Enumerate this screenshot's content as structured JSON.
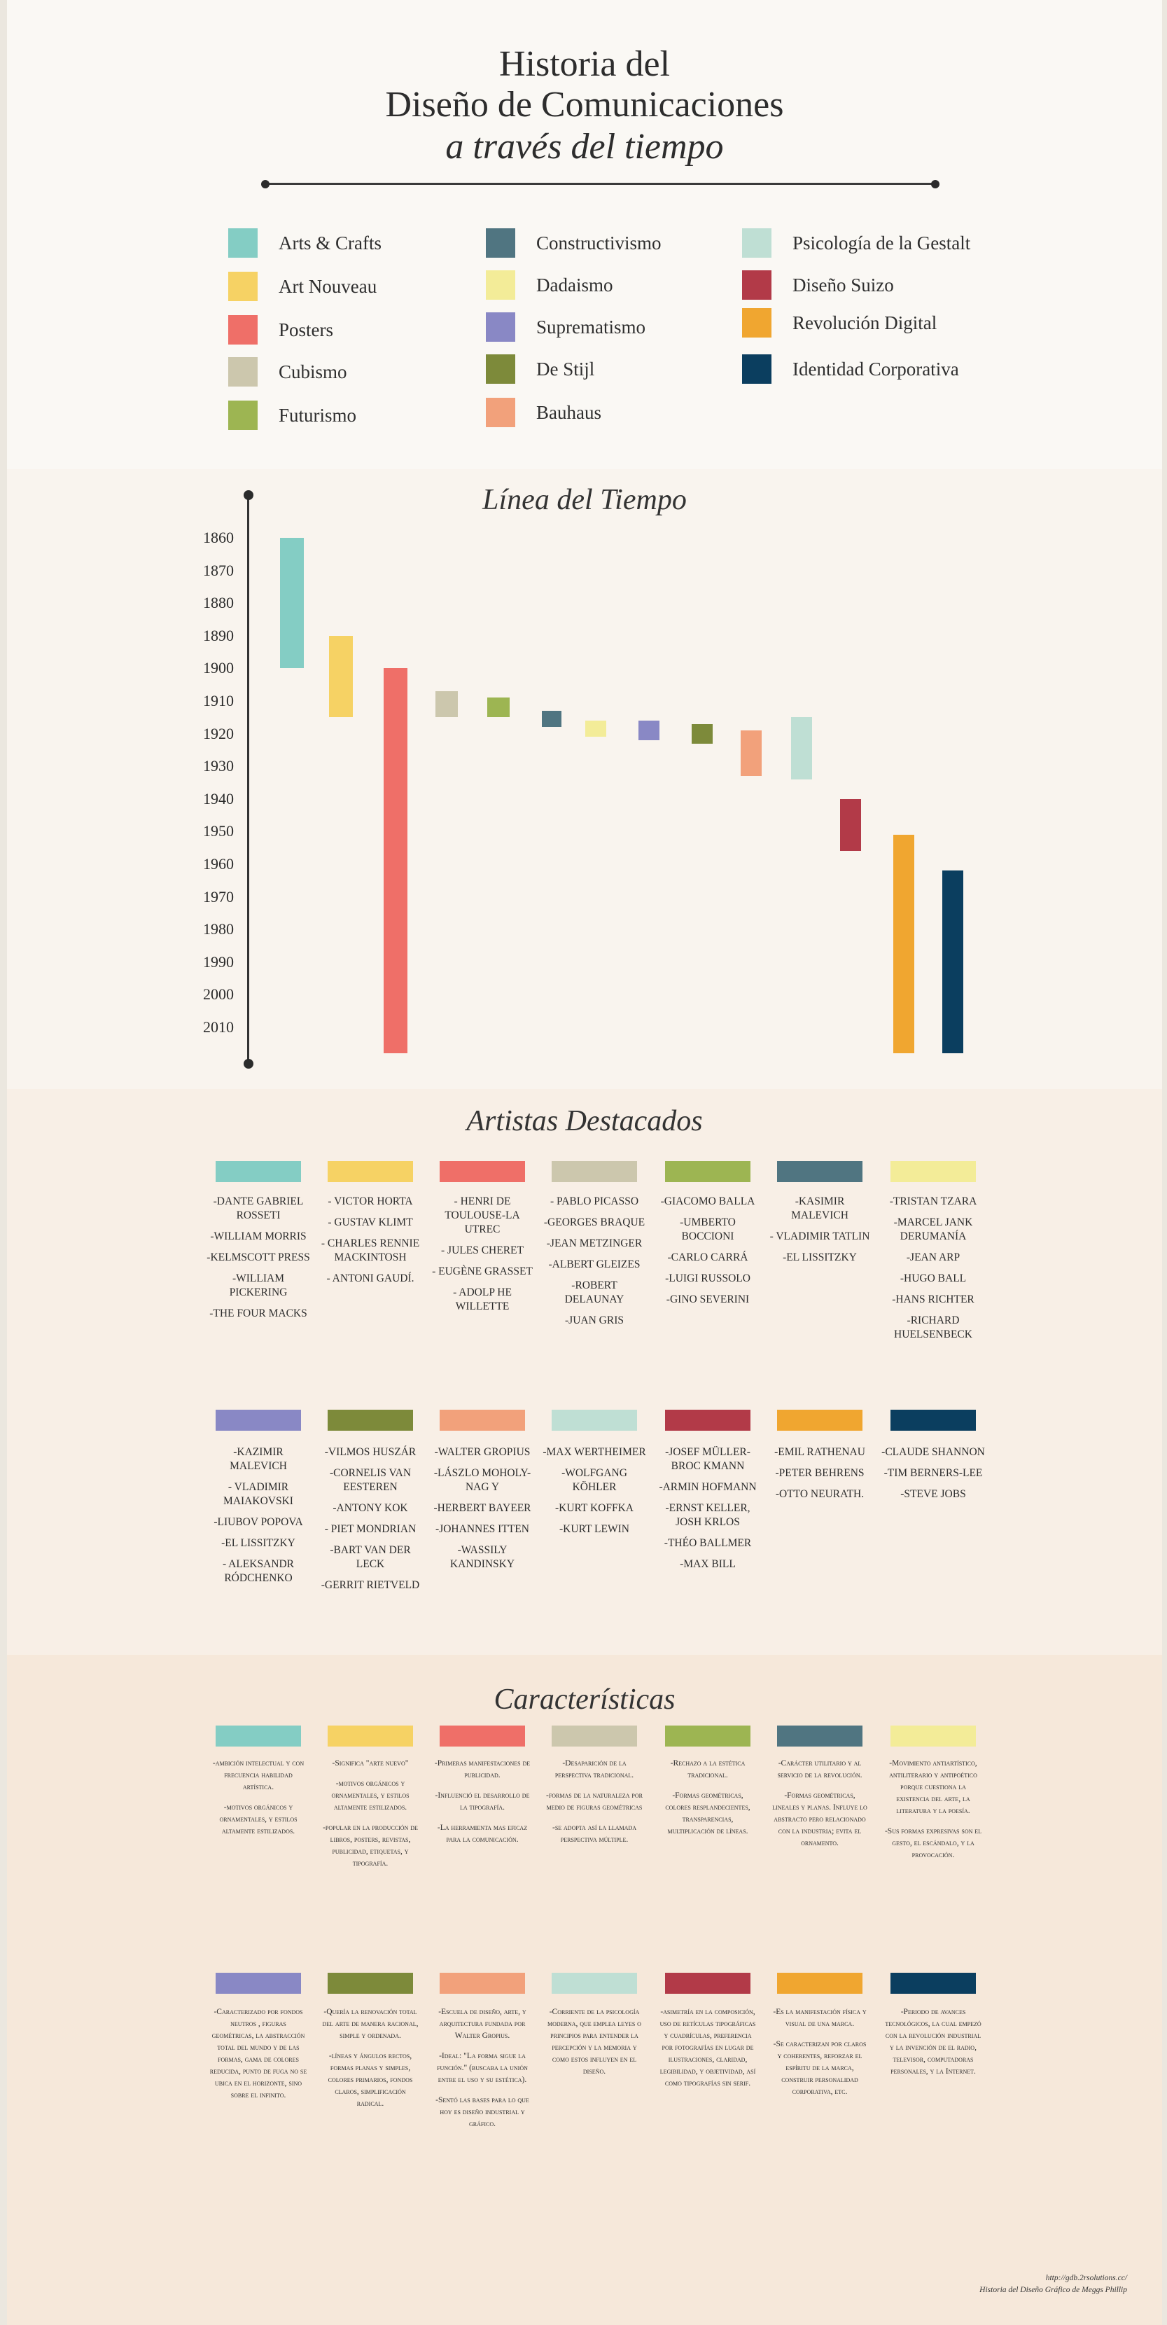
{
  "header": {
    "title_line1": "Historia del",
    "title_line2": "Diseño de Comunicaciones",
    "title_line3": "a través del tiempo"
  },
  "legend": [
    {
      "label": "Arts & Crafts",
      "color": "#84cdc4"
    },
    {
      "label": "Art Nouveau",
      "color": "#f6d264"
    },
    {
      "label": "Posters",
      "color": "#ef6f68"
    },
    {
      "label": "Cubismo",
      "color": "#ccc7ad"
    },
    {
      "label": "Futurismo",
      "color": "#9db552"
    },
    {
      "label": "Constructivismo",
      "color": "#507581"
    },
    {
      "label": "Dadaismo",
      "color": "#f3ec98"
    },
    {
      "label": "Suprematismo",
      "color": "#8988c5"
    },
    {
      "label": "De Stijl",
      "color": "#7d8a3a"
    },
    {
      "label": "Bauhaus",
      "color": "#f2a17b"
    },
    {
      "label": "Psicología de la Gestalt",
      "color": "#bfdfd4"
    },
    {
      "label": "Diseño Suizo",
      "color": "#b23a48"
    },
    {
      "label": "Revolución Digital",
      "color": "#f0a630"
    },
    {
      "label": "Identidad Corporativa",
      "color": "#0b3e5f"
    }
  ],
  "timeline": {
    "title": "Línea del Tiempo",
    "years": [
      "1860",
      "1870",
      "1880",
      "1890",
      "1900",
      "1910",
      "1920",
      "1930",
      "1940",
      "1950",
      "1960",
      "1970",
      "1980",
      "1990",
      "2000",
      "2010"
    ],
    "periods": [
      {
        "movement": "Arts & Crafts",
        "start": 1860,
        "end": 1900
      },
      {
        "movement": "Art Nouveau",
        "start": 1890,
        "end": 1915
      },
      {
        "movement": "Posters",
        "start": 1900,
        "end": 2018
      },
      {
        "movement": "Cubismo",
        "start": 1907,
        "end": 1915
      },
      {
        "movement": "Futurismo",
        "start": 1909,
        "end": 1915
      },
      {
        "movement": "Constructivismo",
        "start": 1913,
        "end": 1918
      },
      {
        "movement": "Dadaismo",
        "start": 1916,
        "end": 1921
      },
      {
        "movement": "Suprematismo",
        "start": 1916,
        "end": 1922
      },
      {
        "movement": "De Stijl",
        "start": 1917,
        "end": 1923
      },
      {
        "movement": "Bauhaus",
        "start": 1919,
        "end": 1933
      },
      {
        "movement": "Psicología de la Gestalt",
        "start": 1915,
        "end": 1934
      },
      {
        "movement": "Diseño Suizo",
        "start": 1940,
        "end": 1956
      },
      {
        "movement": "Revolución Digital",
        "start": 1951,
        "end": 2018
      },
      {
        "movement": "Identidad Corporativa",
        "start": 1962,
        "end": 2018
      }
    ]
  },
  "artists": {
    "title": "Artistas Destacados",
    "columns": [
      [
        "-DANTE GABRIEL ROSSETI",
        "-WILLIAM MORRIS",
        "-KELMSCOTT PRESS",
        "-WILLIAM PICKERING",
        "-THE FOUR MACKS"
      ],
      [
        "- VICTOR HORTA",
        "- GUSTAV KLIMT",
        "- CHARLES RENNIE MACKINTOSH",
        "- ANTONI GAUDÍ."
      ],
      [
        "- HENRI DE TOULOUSE-LA UTREC",
        "- JULES CHERET",
        "- EUGÈNE GRASSET",
        "- ADOLP HE WILLETTE"
      ],
      [
        "- PABLO PICASSO",
        "-GEORGES BRAQUE",
        "-JEAN METZINGER",
        "-ALBERT GLEIZES",
        "-ROBERT DELAUNAY",
        "-JUAN GRIS"
      ],
      [
        "-GIACOMO BALLA",
        "-UMBERTO BOCCIONI",
        "-CARLO CARRÁ",
        "-LUIGI RUSSOLO",
        "-GINO SEVERINI"
      ],
      [
        "-KASIMIR MALEVICH",
        "- VLADIMIR TATLIN",
        "-EL LISSITZKY"
      ],
      [
        "-TRISTAN TZARA",
        "-MARCEL JANK DERUMANÍA",
        "-JEAN ARP",
        "-HUGO BALL",
        "-HANS RICHTER",
        "-RICHARD HUELSENBECK"
      ],
      [
        "-KAZIMIR MALEVICH",
        "- VLADIMIR MAIAKOVSKI",
        "-LIUBOV POPOVA",
        "-EL LISSITZKY",
        "- ALEKSANDR RÓDCHENKO"
      ],
      [
        "-VILMOS HUSZÁR",
        "-CORNELIS VAN EESTEREN",
        "-ANTONY KOK",
        "- PIET MONDRIAN",
        "-BART VAN DER LECK",
        "-GERRIT RIETVELD"
      ],
      [
        "-WALTER GROPIUS",
        "-LÁSZLO MOHOLY-NAG Y",
        "-HERBERT BAYEER",
        "-JOHANNES ITTEN",
        "-WASSILY KANDINSKY"
      ],
      [
        "-MAX WERTHEIMER",
        "-WOLFGANG KÖHLER",
        "-KURT KOFFKA",
        "-KURT LEWIN"
      ],
      [
        "-JOSEF MÜLLER-BROC KMANN",
        "-ARMIN HOFMANN",
        "-ERNST KELLER, JOSH KRLOS",
        "-THÉO BALLMER",
        "-MAX BILL"
      ],
      [
        "-EMIL RATHENAU",
        "-PETER BEHRENS",
        "-OTTO NEURATH."
      ],
      [
        "-CLAUDE SHANNON",
        "-TIM BERNERS-LEE",
        "-STEVE JOBS"
      ]
    ]
  },
  "characteristics": {
    "title": "Características",
    "columns": [
      [
        "-ambición intelectual y con frecuencia habilidad artística.",
        "-motivos orgánicos y ornamentales, y estilos altamente estilizados."
      ],
      [
        "-Significa \"arte nuevo\"",
        "-motivos orgánicos y ornamentales, y estilos altamente estilizados.",
        "-popular en la producción de libros, posters, revistas, publicidad, etiquetas, y tipografía."
      ],
      [
        "-Primeras manifestaciones de publicidad.",
        "-Influenció el desarrollo de la tipografía.",
        "-La herramienta mas eficaz para la comunicación."
      ],
      [
        "-Desaparición de la perspectiva tradicional.",
        "-formas de la naturaleza por medio de figuras geométricas",
        "-se adopta así la llamada perspectiva múltiple."
      ],
      [
        "-Rechazo a la estética tradicional.",
        "-Formas geométricas, colores resplandecientes, transparencias, multiplicación de líneas."
      ],
      [
        "-Carácter utilitario y al servicio de la revolución.",
        "-Formas geométricas, lineales y planas. Influye lo abstracto pero relacionado con la industria; evita el ornamento."
      ],
      [
        "-Movimiento antiartístico, antiliterario y antipoético porque cuestiona la existencia del arte, la literatura y la poesía.",
        "-Sus formas expresivas son el gesto, el escándalo, y la provocación."
      ],
      [
        "-Caracterizado por fondos neutros , figuras geométricas, la abstracción total del mundo y de las formas, gama de colores reducida, punto de fuga no se ubica en el horizonte, sino sobre el infinito."
      ],
      [
        "-Quería la renovación total del arte de manera racional, simple y ordenada.",
        "-líneas y ángulos rectos, formas planas y simples, colores primarios, fondos claros, simplificación radical."
      ],
      [
        "-Escuela de diseño, arte, y arquitectura fundada por Walter Gropius.",
        "-Ideal: \"La forma sigue la función.\" (buscaba la unión entre el uso y su estética).",
        "-Sentó las bases para lo que hoy es diseño industrial y gráfico."
      ],
      [
        "-Corriente de la psicología moderna, que emplea leyes o principios para entender la percepción y la memoria y como estos influyen en el diseño."
      ],
      [
        "-asimetría en la composición, uso de retículas tipográficas y cuadrículas, preferencia por fotografías en lugar de ilustraciones, claridad, legibilidad, y objetividad, así como tipografías sin serif."
      ],
      [
        "-Es la manifestación física y visual de una marca.",
        "-Se caracterizan por claros y coherentes, reforzar el espíritu de la marca, construir personalidad corporativa, etc."
      ],
      [
        "-Periodo de avances tecnológicos, la cual empezó con la revolución industrial y la invención de el radio, televisor, computadoras personales, y la Internet."
      ]
    ]
  },
  "credit": {
    "url": "http://gdb.2rsolutions.cc/",
    "author": "Historia del Diseño Gráfico de Meggs Phillip"
  }
}
